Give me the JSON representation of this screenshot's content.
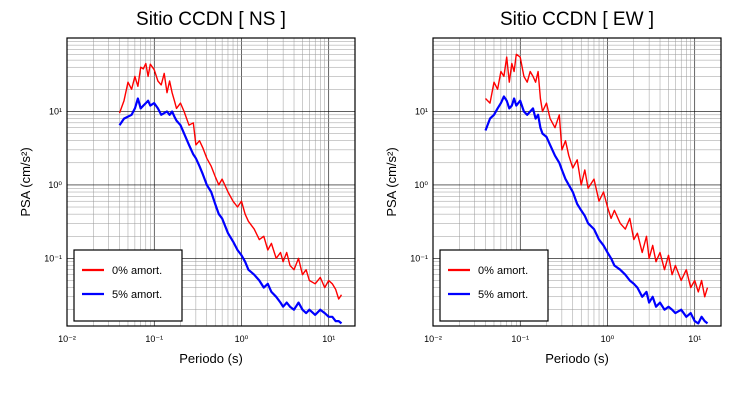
{
  "chart_data": [
    {
      "type": "line",
      "title": "Sitio CCDN [ NS ]",
      "xlabel": "Periodo (s)",
      "ylabel": "PSA (cm/s²)",
      "xscale": "log",
      "yscale": "log",
      "xlim": [
        0.01,
        20
      ],
      "ylim": [
        0.012,
        100
      ],
      "xticks": [
        "10⁻²",
        "10⁻¹",
        "10⁰",
        "10¹"
      ],
      "yticks": [
        "10⁻¹",
        "10⁰",
        "10¹"
      ],
      "grid": true,
      "legend_position": "bottom-left",
      "series": [
        {
          "name": "0% amort.",
          "color": "#ff0000",
          "x": [
            0.04,
            0.045,
            0.05,
            0.055,
            0.06,
            0.065,
            0.07,
            0.075,
            0.08,
            0.085,
            0.09,
            0.1,
            0.11,
            0.12,
            0.13,
            0.14,
            0.15,
            0.16,
            0.17,
            0.18,
            0.2,
            0.22,
            0.25,
            0.28,
            0.3,
            0.33,
            0.36,
            0.4,
            0.45,
            0.5,
            0.55,
            0.6,
            0.7,
            0.8,
            0.9,
            1.0,
            1.1,
            1.2,
            1.4,
            1.6,
            1.8,
            2.0,
            2.2,
            2.5,
            2.8,
            3.0,
            3.3,
            3.6,
            4.0,
            4.5,
            5.0,
            5.5,
            6.0,
            7.0,
            8.0,
            9.0,
            10.0,
            11.0,
            12.0,
            13.0,
            14.0
          ],
          "y": [
            9.5,
            14,
            25,
            20,
            30,
            22,
            40,
            38,
            45,
            30,
            44,
            37,
            26,
            23,
            33,
            18,
            26,
            18,
            14,
            11,
            13,
            10,
            6.5,
            7.0,
            3.5,
            4.0,
            3.2,
            2.3,
            1.8,
            1.3,
            1.0,
            1.2,
            0.8,
            0.6,
            0.5,
            0.6,
            0.4,
            0.32,
            0.25,
            0.18,
            0.2,
            0.13,
            0.16,
            0.1,
            0.12,
            0.09,
            0.12,
            0.08,
            0.07,
            0.1,
            0.06,
            0.07,
            0.05,
            0.045,
            0.055,
            0.04,
            0.05,
            0.045,
            0.038,
            0.028,
            0.032
          ]
        },
        {
          "name": "5% amort.",
          "color": "#0000ff",
          "x": [
            0.04,
            0.045,
            0.05,
            0.055,
            0.06,
            0.065,
            0.07,
            0.075,
            0.08,
            0.085,
            0.09,
            0.1,
            0.11,
            0.12,
            0.13,
            0.14,
            0.15,
            0.16,
            0.17,
            0.18,
            0.2,
            0.22,
            0.25,
            0.28,
            0.3,
            0.33,
            0.36,
            0.4,
            0.45,
            0.5,
            0.55,
            0.6,
            0.7,
            0.8,
            0.9,
            1.0,
            1.1,
            1.2,
            1.4,
            1.6,
            1.8,
            2.0,
            2.2,
            2.5,
            2.8,
            3.0,
            3.3,
            3.6,
            4.0,
            4.5,
            5.0,
            5.5,
            6.0,
            7.0,
            8.0,
            9.0,
            10.0,
            11.0,
            12.0,
            13.0,
            14.0
          ],
          "y": [
            6.5,
            8.0,
            8.5,
            9.0,
            11,
            15,
            11,
            12,
            13,
            14,
            12,
            13,
            11,
            9.0,
            9.5,
            10,
            9.0,
            10,
            8.5,
            7.5,
            6.5,
            5.0,
            3.5,
            2.6,
            2.3,
            1.8,
            1.4,
            1.0,
            0.8,
            0.55,
            0.4,
            0.35,
            0.22,
            0.17,
            0.13,
            0.11,
            0.09,
            0.07,
            0.06,
            0.05,
            0.04,
            0.045,
            0.035,
            0.03,
            0.025,
            0.022,
            0.025,
            0.022,
            0.02,
            0.025,
            0.02,
            0.018,
            0.02,
            0.017,
            0.02,
            0.018,
            0.016,
            0.016,
            0.014,
            0.014,
            0.013
          ]
        }
      ]
    },
    {
      "type": "line",
      "title": "Sitio CCDN [ EW ]",
      "xlabel": "Periodo (s)",
      "ylabel": "PSA (cm/s²)",
      "xscale": "log",
      "yscale": "log",
      "xlim": [
        0.01,
        20
      ],
      "ylim": [
        0.012,
        100
      ],
      "xticks": [
        "10⁻²",
        "10⁻¹",
        "10⁰",
        "10¹"
      ],
      "yticks": [
        "10⁻¹",
        "10⁰",
        "10¹"
      ],
      "grid": true,
      "legend_position": "bottom-left",
      "series": [
        {
          "name": "0% amort.",
          "color": "#ff0000",
          "x": [
            0.04,
            0.045,
            0.05,
            0.055,
            0.06,
            0.065,
            0.07,
            0.075,
            0.08,
            0.085,
            0.09,
            0.1,
            0.11,
            0.12,
            0.13,
            0.14,
            0.15,
            0.16,
            0.17,
            0.18,
            0.2,
            0.22,
            0.25,
            0.28,
            0.3,
            0.33,
            0.36,
            0.4,
            0.45,
            0.5,
            0.55,
            0.6,
            0.7,
            0.8,
            0.9,
            1.0,
            1.1,
            1.2,
            1.4,
            1.6,
            1.8,
            2.0,
            2.2,
            2.5,
            2.8,
            3.0,
            3.3,
            3.6,
            4.0,
            4.5,
            5.0,
            5.5,
            6.0,
            7.0,
            8.0,
            9.0,
            10.0,
            11.0,
            12.0,
            13.0,
            14.0
          ],
          "y": [
            15,
            13,
            25,
            20,
            35,
            30,
            55,
            25,
            45,
            35,
            60,
            55,
            30,
            25,
            35,
            30,
            25,
            35,
            15,
            10,
            13,
            8.0,
            6.0,
            9.0,
            3.0,
            4.0,
            2.5,
            1.7,
            2.2,
            1.0,
            1.6,
            0.9,
            1.2,
            0.6,
            0.8,
            0.5,
            0.35,
            0.45,
            0.3,
            0.25,
            0.35,
            0.18,
            0.22,
            0.12,
            0.2,
            0.1,
            0.15,
            0.09,
            0.12,
            0.07,
            0.11,
            0.06,
            0.08,
            0.05,
            0.07,
            0.04,
            0.05,
            0.035,
            0.05,
            0.03,
            0.04
          ]
        },
        {
          "name": "5% amort.",
          "color": "#0000ff",
          "x": [
            0.04,
            0.045,
            0.05,
            0.055,
            0.06,
            0.065,
            0.07,
            0.075,
            0.08,
            0.085,
            0.09,
            0.1,
            0.11,
            0.12,
            0.13,
            0.14,
            0.15,
            0.16,
            0.17,
            0.18,
            0.2,
            0.22,
            0.25,
            0.28,
            0.3,
            0.33,
            0.36,
            0.4,
            0.45,
            0.5,
            0.55,
            0.6,
            0.7,
            0.8,
            0.9,
            1.0,
            1.1,
            1.2,
            1.4,
            1.6,
            1.8,
            2.0,
            2.2,
            2.5,
            2.8,
            3.0,
            3.3,
            3.6,
            4.0,
            4.5,
            5.0,
            5.5,
            6.0,
            7.0,
            8.0,
            9.0,
            10.0,
            11.0,
            12.0,
            13.0,
            14.0
          ],
          "y": [
            5.5,
            8.0,
            9.0,
            11,
            13,
            16,
            14,
            11,
            12,
            15,
            12,
            14,
            10,
            9.0,
            10,
            11,
            8.0,
            9.0,
            6.0,
            5.0,
            4.5,
            3.5,
            2.5,
            2.0,
            1.6,
            1.2,
            1.0,
            0.8,
            0.55,
            0.45,
            0.38,
            0.3,
            0.25,
            0.18,
            0.15,
            0.12,
            0.1,
            0.08,
            0.07,
            0.06,
            0.05,
            0.045,
            0.04,
            0.03,
            0.035,
            0.025,
            0.03,
            0.022,
            0.025,
            0.02,
            0.022,
            0.02,
            0.018,
            0.02,
            0.016,
            0.018,
            0.014,
            0.013,
            0.016,
            0.014,
            0.013
          ]
        }
      ]
    }
  ]
}
